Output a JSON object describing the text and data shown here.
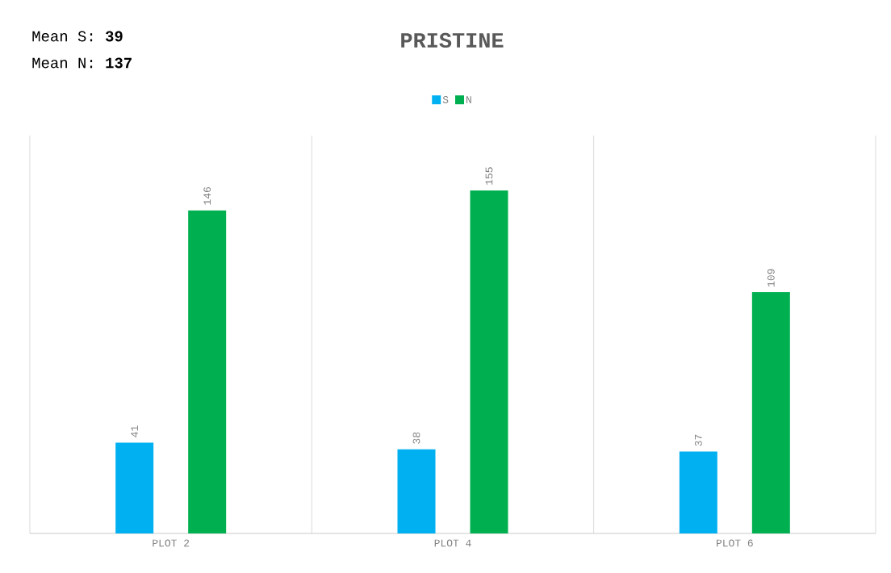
{
  "chart_data": {
    "type": "bar",
    "title": "PRISTINE",
    "annotations": [
      "Mean S: **39**",
      "Mean N: **137**"
    ],
    "categories": [
      "PLOT 2",
      "PLOT 4",
      "PLOT 6"
    ],
    "series": [
      {
        "name": "S",
        "color": "#00b0f0",
        "values": [
          41,
          38,
          37
        ]
      },
      {
        "name": "N",
        "color": "#00b050",
        "values": [
          146,
          155,
          109
        ]
      }
    ],
    "data_labels": true,
    "grid": "x",
    "legend": "top"
  }
}
